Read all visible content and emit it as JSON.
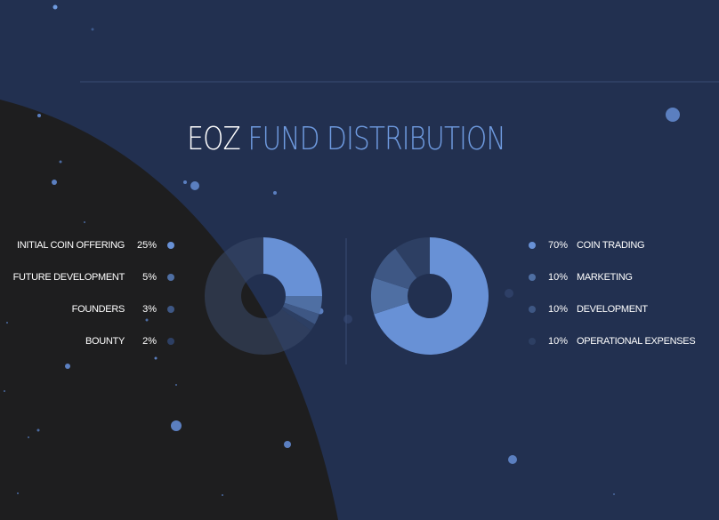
{
  "title": {
    "prefix": "EOZ",
    "main": "FUND DISTRIBUTION"
  },
  "colors": {
    "background": "#223050",
    "planet": "#1e1e1f",
    "accent": "#6f9be0"
  },
  "token_distribution": {
    "items": [
      {
        "label": "INITIAL COIN OFFERING",
        "percent": "25%",
        "value": 25,
        "color": "#6891d6"
      },
      {
        "label": "FUTURE DEVELOPMENT",
        "percent": "5%",
        "value": 5,
        "color": "#4f6fa3"
      },
      {
        "label": "FOUNDERS",
        "percent": "3%",
        "value": 3,
        "color": "#3e5784"
      },
      {
        "label": "BOUNTY",
        "percent": "2%",
        "value": 2,
        "color": "#2d3f63"
      }
    ]
  },
  "fund_distribution": {
    "items": [
      {
        "label": "COIN TRADING",
        "percent": "70%",
        "value": 70,
        "color": "#6891d6"
      },
      {
        "label": "MARKETING",
        "percent": "10%",
        "value": 10,
        "color": "#4f6fa3"
      },
      {
        "label": "DEVELOPMENT",
        "percent": "10%",
        "value": 10,
        "color": "#3e5784"
      },
      {
        "label": "OPERATIONAL EXPENSES",
        "percent": "10%",
        "value": 10,
        "color": "#2d3f63"
      }
    ]
  }
}
